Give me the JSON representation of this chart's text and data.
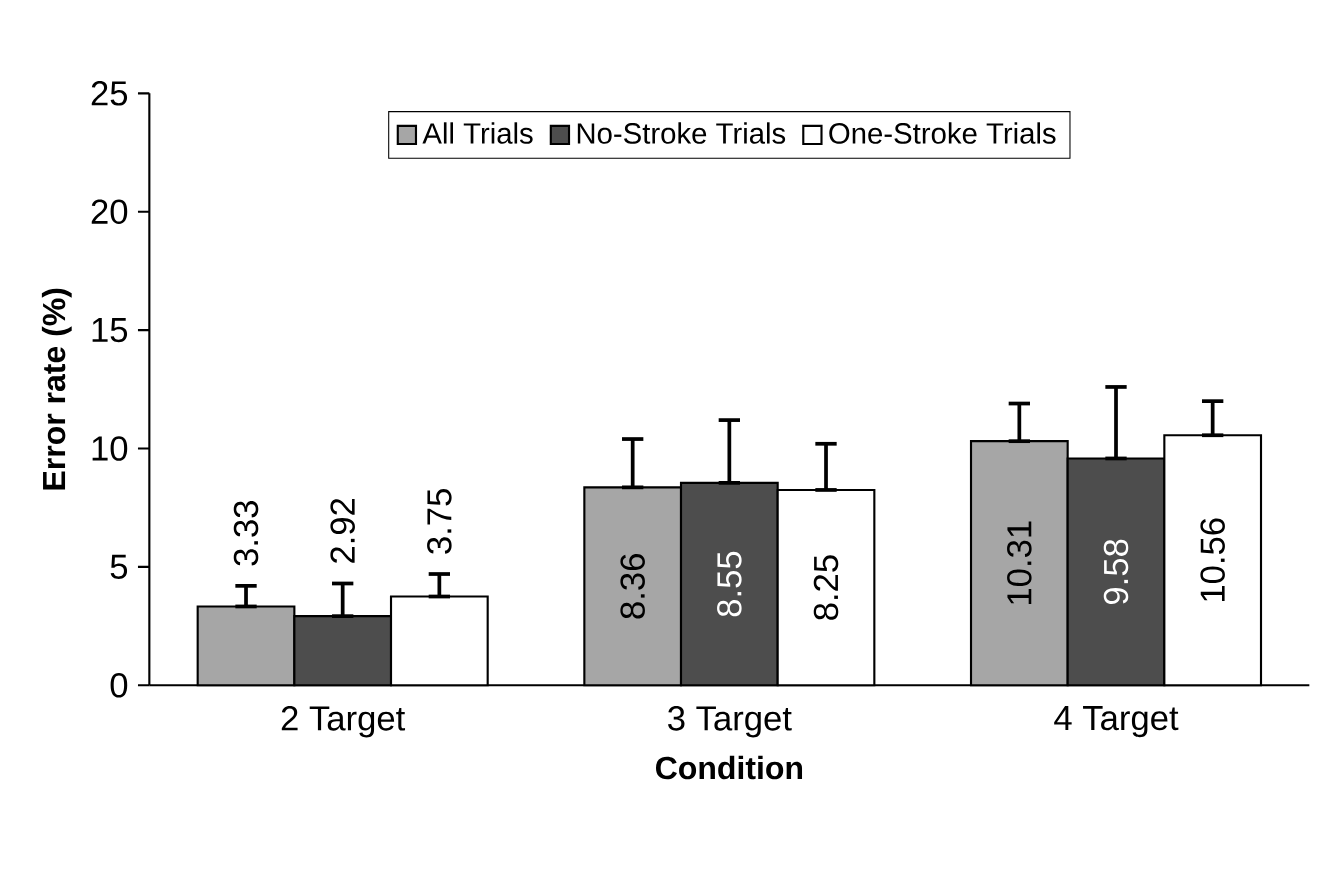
{
  "chart_data": {
    "type": "bar",
    "xlabel": "Condition",
    "ylabel": "Error rate (%)",
    "categories": [
      "2 Target",
      "3 Target",
      "4 Target"
    ],
    "series": [
      {
        "name": "All Trials",
        "color": "#a6a6a6",
        "values": [
          3.33,
          8.36,
          10.31
        ],
        "errors": [
          [
            3.33,
            4.2
          ],
          [
            8.36,
            10.4
          ],
          [
            10.31,
            11.9
          ]
        ]
      },
      {
        "name": "No-Stroke Trials",
        "color": "#4d4d4d",
        "values": [
          2.92,
          8.55,
          9.58
        ],
        "errors": [
          [
            2.92,
            4.3
          ],
          [
            8.55,
            11.2
          ],
          [
            9.58,
            12.6
          ]
        ]
      },
      {
        "name": "One-Stroke Trials",
        "color": "#ffffff",
        "values": [
          3.75,
          8.25,
          10.56
        ],
        "errors": [
          [
            3.75,
            4.7
          ],
          [
            8.25,
            10.2
          ],
          [
            10.56,
            12.0
          ]
        ]
      }
    ],
    "ylim": [
      0,
      25
    ],
    "yticks": [
      0,
      5,
      10,
      15,
      20,
      25
    ],
    "data_labels": true,
    "legend": "top",
    "grid": false
  }
}
